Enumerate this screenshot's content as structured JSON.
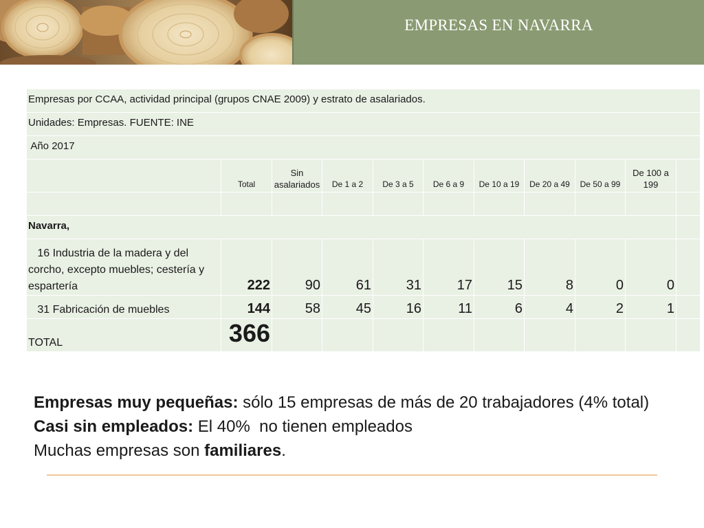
{
  "header": {
    "title": "EMPRESAS EN NAVARRA"
  },
  "table": {
    "caption_line1": "Empresas por CCAA, actividad principal (grupos CNAE 2009) y estrato de asalariados.",
    "caption_line2": "Unidades: Empresas. FUENTE: INE",
    "caption_line3": " Año 2017",
    "columns": [
      "Total",
      "Sin asalariados",
      "De 1 a 2",
      "De 3 a 5",
      "De 6 a 9",
      "De 10 a 19",
      "De 20 a 49",
      "De 50 a 99",
      "De 100 a 199"
    ],
    "region": "Navarra,",
    "rows": [
      {
        "label": "   16 Industria de la madera y del corcho, excepto muebles; cestería y espartería",
        "total": "222",
        "values": [
          "90",
          "61",
          "31",
          "17",
          "15",
          "8",
          "0",
          "0"
        ]
      },
      {
        "label": "   31 Fabricación de muebles",
        "total": "144",
        "values": [
          "58",
          "45",
          "16",
          "11",
          "6",
          "4",
          "2",
          "1"
        ]
      }
    ],
    "total_label": "TOTAL",
    "total_value": "366"
  },
  "summary": {
    "line1_bold": "Empresas muy pequeñas:",
    "line1_rest": " sólo 15 empresas de más de 20 trabajadores (4% total)",
    "line2_bold": "Casi sin empleados:",
    "line2_rest": " El 40%  no tienen empleados",
    "line3_pre": "Muchas empresas son ",
    "line3_bold": "familiares",
    "line3_post": "."
  },
  "colors": {
    "header_bar": "#8a9a72",
    "table_cell": "#e9f0e4",
    "rule": "#f2c79a"
  }
}
